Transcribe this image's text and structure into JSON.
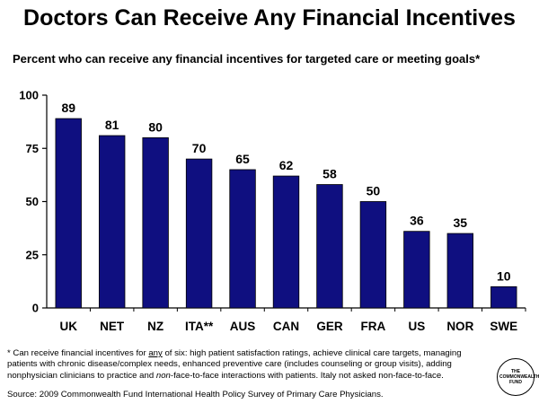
{
  "title": "Doctors Can Receive Any Financial Incentives",
  "subtitle": "Percent who can receive any financial incentives for targeted care or meeting goals*",
  "footnote": {
    "prefix": "* Can receive financial incentives for ",
    "any": "any",
    "middle": " of six: high patient satisfaction ratings, achieve clinical care targets, managing patients with chronic disease/complex needs, enhanced preventive care (includes counseling or group visits), adding nonphysician clinicians to practice and ",
    "non": "non",
    "suffix": "-face-to-face interactions with patients. Italy not asked non-face-to-face."
  },
  "source": "Source: 2009 Commonwealth Fund International Health Policy Survey of Primary Care Physicians.",
  "logo": {
    "line1": "THE",
    "line2": "COMMONWEALTH",
    "line3": "FUND"
  },
  "chart_data": {
    "type": "bar",
    "categories": [
      "UK",
      "NET",
      "NZ",
      "ITA**",
      "AUS",
      "CAN",
      "GER",
      "FRA",
      "US",
      "NOR",
      "SWE"
    ],
    "values": [
      89,
      81,
      80,
      70,
      65,
      62,
      58,
      50,
      36,
      35,
      10
    ],
    "ylim": [
      0,
      100
    ],
    "yticks": [
      0,
      25,
      50,
      75,
      100
    ],
    "bar_color": "#0f0f80",
    "grid": false,
    "show_value_labels": true
  }
}
